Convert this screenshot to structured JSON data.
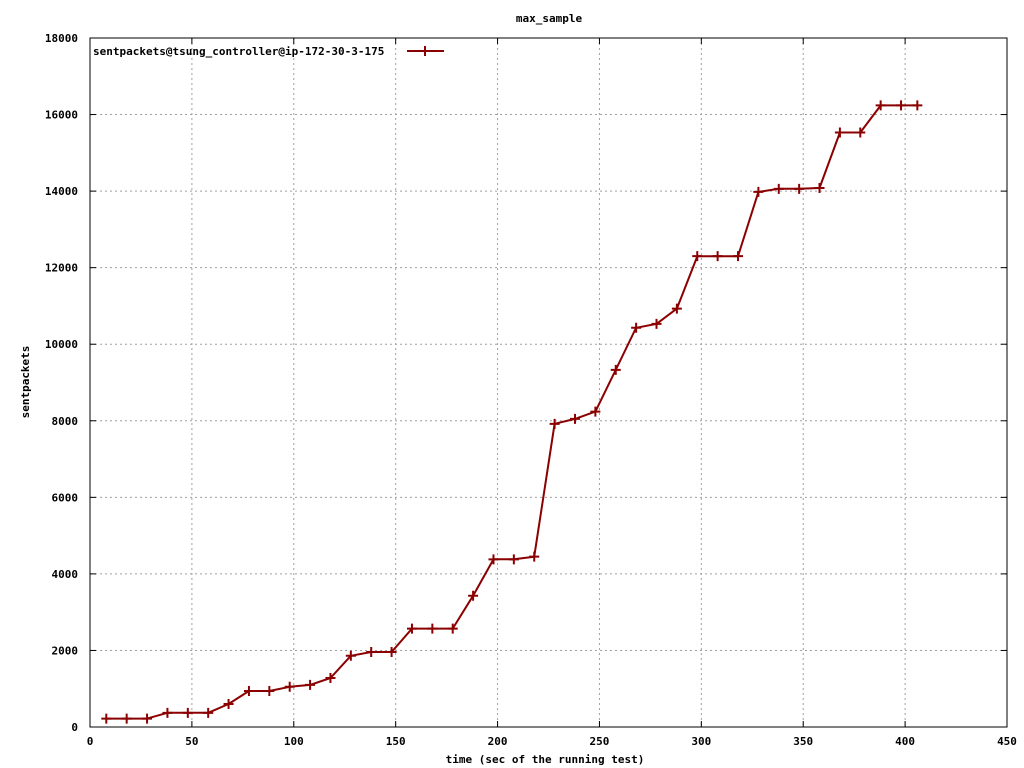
{
  "chart_data": {
    "type": "line",
    "title": "max_sample",
    "xlabel": "time (sec of the running test)",
    "ylabel": "sentpackets",
    "xlim": [
      0,
      450
    ],
    "ylim": [
      0,
      18000
    ],
    "xticks": [
      0,
      50,
      100,
      150,
      200,
      250,
      300,
      350,
      400,
      450
    ],
    "yticks": [
      0,
      2000,
      4000,
      6000,
      8000,
      10000,
      12000,
      14000,
      16000,
      18000
    ],
    "grid": true,
    "legend_position": "top-left",
    "series": [
      {
        "name": "sentpackets@tsung_controller@ip-172-30-3-175",
        "color": "#8b0000",
        "marker": "plus",
        "x": [
          8,
          18,
          28,
          38,
          48,
          58,
          68,
          78,
          88,
          98,
          108,
          118,
          128,
          138,
          148,
          158,
          168,
          178,
          188,
          198,
          208,
          218,
          228,
          238,
          248,
          258,
          268,
          278,
          288,
          298,
          308,
          318,
          328,
          338,
          348,
          358,
          368,
          378,
          388,
          398,
          406
        ],
        "y": [
          220,
          220,
          220,
          370,
          370,
          370,
          600,
          940,
          940,
          1050,
          1100,
          1280,
          1860,
          1960,
          1960,
          2570,
          2570,
          2570,
          3430,
          4380,
          4380,
          4450,
          7920,
          8050,
          8240,
          9330,
          10430,
          10530,
          10930,
          12300,
          12300,
          12300,
          13980,
          14060,
          14060,
          14080,
          15530,
          15530,
          16240,
          16240,
          16240
        ]
      }
    ]
  }
}
